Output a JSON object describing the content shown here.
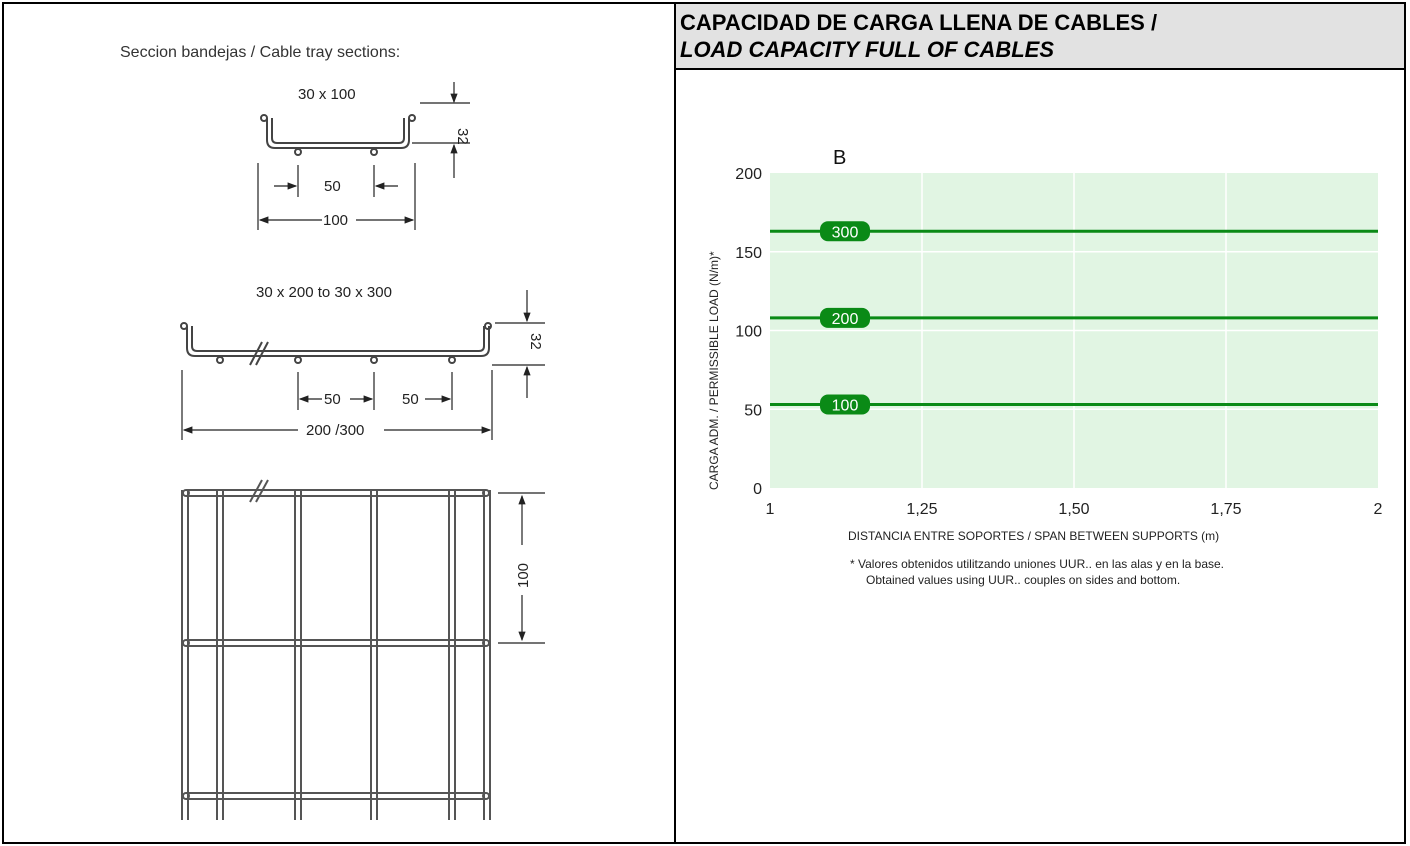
{
  "header": {
    "line1": "CAPACIDAD DE CARGA LLENA DE CABLES /",
    "line2": "LOAD CAPACITY FULL OF CABLES"
  },
  "drawing": {
    "title": "Seccion bandejas / Cable tray sections:",
    "section1": {
      "label": "30 x 100",
      "height": "32",
      "inner_spacing": "50",
      "width": "100"
    },
    "section2": {
      "label": "30 x 200 to 30 x 300",
      "height": "32",
      "spacing_a": "50",
      "spacing_b": "50",
      "width": "200 /300"
    },
    "plan": {
      "dimension": "100"
    }
  },
  "chart_data": {
    "type": "line",
    "title": "B",
    "xlabel": "DISTANCIA ENTRE SOPORTES / SPAN BETWEEN SUPPORTS (m)",
    "ylabel": "CARGA ADM. / PERMISSIBLE LOAD (N/m)*",
    "xlim": [
      1,
      2
    ],
    "ylim": [
      0,
      200
    ],
    "x_ticks": [
      {
        "value": 1,
        "label": "1"
      },
      {
        "value": 1.25,
        "label": "1,25"
      },
      {
        "value": 1.5,
        "label": "1,50"
      },
      {
        "value": 1.75,
        "label": "1,75"
      },
      {
        "value": 2,
        "label": "2"
      }
    ],
    "y_ticks": [
      {
        "value": 0,
        "label": "0"
      },
      {
        "value": 50,
        "label": "50"
      },
      {
        "value": 100,
        "label": "100"
      },
      {
        "value": 150,
        "label": "150"
      },
      {
        "value": 200,
        "label": "200"
      }
    ],
    "grid": true,
    "series": [
      {
        "name": "300",
        "x": [
          1,
          2
        ],
        "y": [
          163,
          163
        ]
      },
      {
        "name": "200",
        "x": [
          1,
          2
        ],
        "y": [
          108,
          108
        ]
      },
      {
        "name": "100",
        "x": [
          1,
          2
        ],
        "y": [
          53,
          53
        ]
      }
    ],
    "colors": {
      "plot_bg": "#e1f5e3",
      "line": "#0a8a16",
      "badge": "#0a8a16",
      "grid": "#ffffff"
    },
    "note_line1": "* Valores obtenidos utilitzando uniones UUR.. en las alas y en la base.",
    "note_line2": "Obtained values using UUR.. couples on sides and bottom."
  }
}
